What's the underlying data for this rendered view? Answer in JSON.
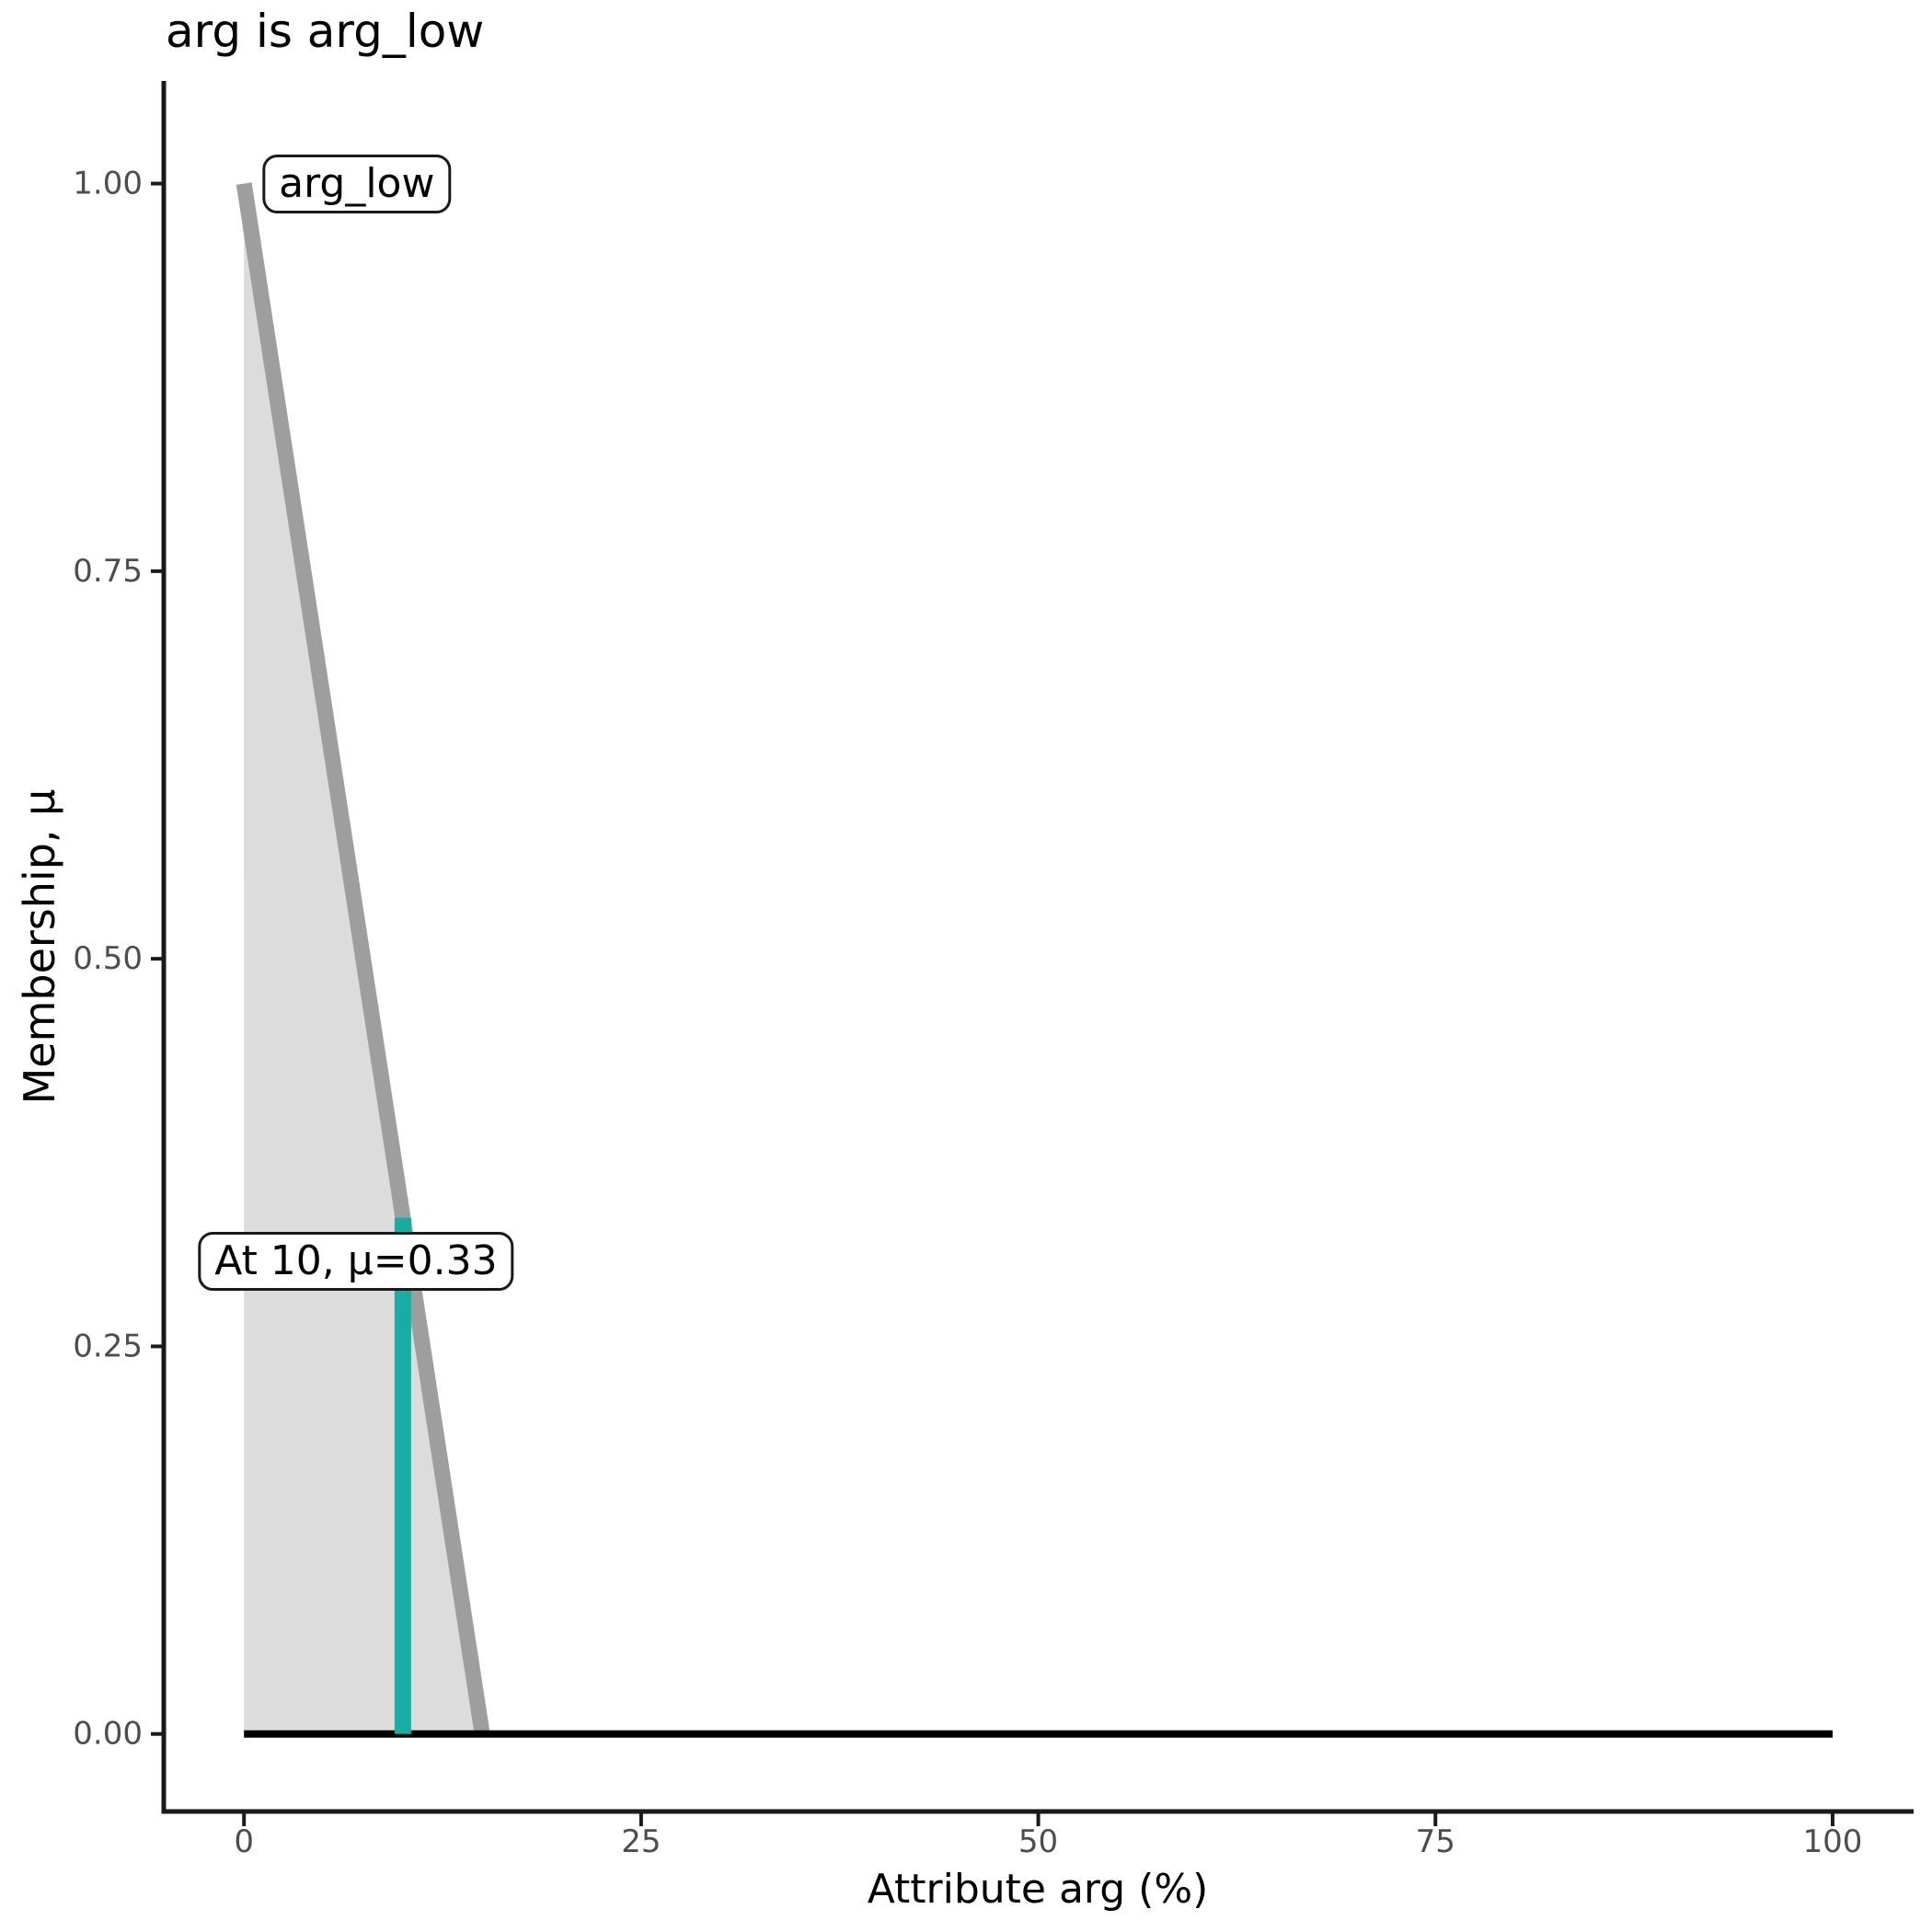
{
  "figure": {
    "background": "#FFFFFF"
  },
  "chart_data": {
    "type": "area",
    "title": "arg is arg_low",
    "xlabel": "Attribute arg (%)",
    "ylabel": "Membership, μ",
    "xlim": [
      -5.05,
      105.1
    ],
    "ylim": [
      -0.05,
      1.065
    ],
    "grid": false,
    "legend": "none",
    "x_ticks": {
      "values": [
        0,
        25,
        50,
        75,
        100
      ],
      "labels": [
        "0",
        "25",
        "50",
        "75",
        "100"
      ]
    },
    "y_ticks": {
      "values": [
        0,
        0.25,
        0.5,
        0.75,
        1.0
      ],
      "labels": [
        "0.00",
        "0.25",
        "0.50",
        "0.75",
        "1.00"
      ]
    },
    "membership_set": {
      "name": "arg_low",
      "shape": "triangular",
      "vertices": [
        [
          0,
          1.0
        ],
        [
          15,
          0
        ]
      ]
    },
    "crisp_value": {
      "x": 10,
      "mu": 0.33
    },
    "series": [
      {
        "name": "arg-low-fill",
        "type": "area",
        "points": [
          [
            0,
            1.0
          ],
          [
            15,
            0
          ],
          [
            0,
            0
          ]
        ],
        "fill": "#DCDCDC"
      },
      {
        "name": "arg-low-line",
        "type": "line",
        "points": [
          [
            0,
            1.0
          ],
          [
            15,
            0
          ]
        ],
        "color": "#9E9E9E",
        "width": 17
      },
      {
        "name": "zero-baseline",
        "type": "line",
        "points": [
          [
            0,
            0
          ],
          [
            100,
            0
          ]
        ],
        "color": "#000000",
        "width": 8
      },
      {
        "name": "crisp-input-line",
        "type": "line",
        "points": [
          [
            10,
            0
          ],
          [
            10,
            0.333
          ]
        ],
        "color": "#1AABA4",
        "width": 18
      }
    ],
    "annotations": [
      {
        "name": "set-label",
        "text": "arg_low",
        "x": 7.1,
        "y": 1.0
      },
      {
        "name": "membership-label",
        "text": "At 10, μ=0.33",
        "x": 7.05,
        "y": 0.305
      }
    ],
    "colors": {
      "axis": "#1A1A1A",
      "tick_label": "#4D4D4D",
      "text": "#000000"
    }
  }
}
